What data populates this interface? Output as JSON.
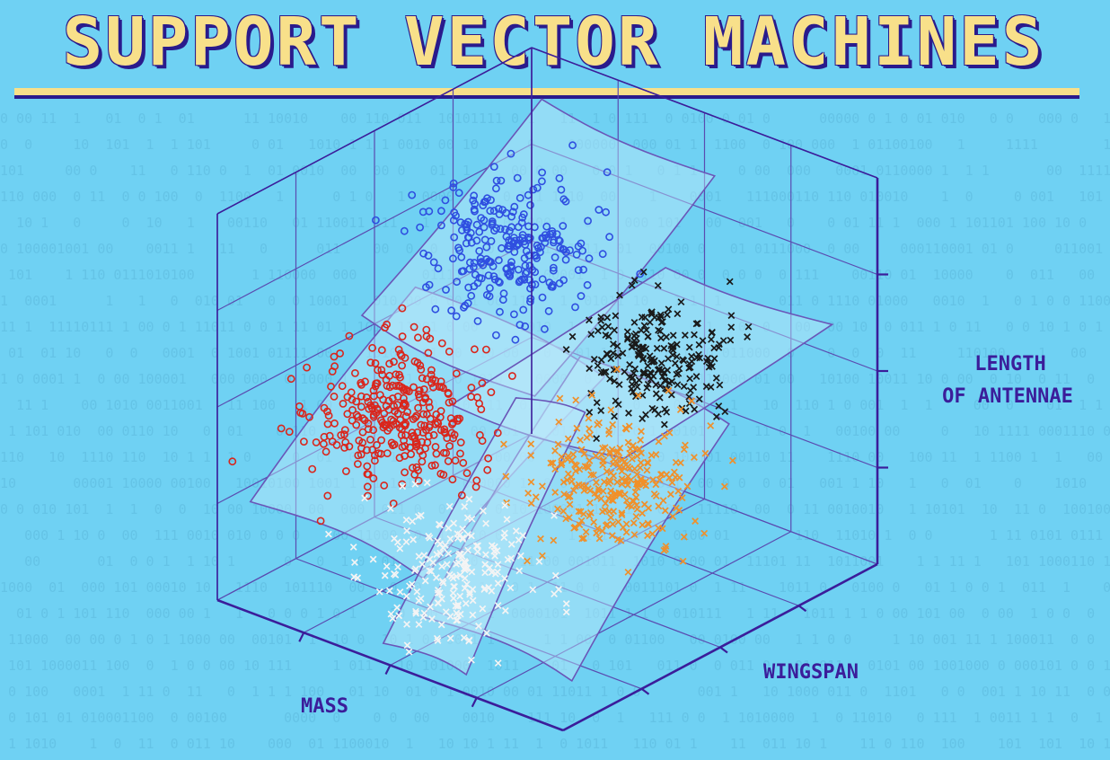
{
  "title": "SUPPORT VECTOR MACHINES",
  "chart_data": {
    "type": "scatter",
    "subtype": "3d-scatter-with-decision-surfaces",
    "axes": {
      "x": {
        "label": "MASS"
      },
      "y": {
        "label": "WINGSPAN"
      },
      "z": {
        "label": "LENGTH OF ANTENNAE"
      }
    },
    "grid": true,
    "series": [
      {
        "marker": "o",
        "color": "#2f4fe0",
        "n": 260,
        "center": [
          0.35,
          0.55,
          0.78
        ],
        "spread": [
          0.1,
          0.09,
          0.07
        ]
      },
      {
        "marker": "x",
        "color": "#1a1a1a",
        "n": 230,
        "center": [
          0.85,
          0.45,
          0.72
        ],
        "spread": [
          0.08,
          0.08,
          0.07
        ]
      },
      {
        "marker": "o",
        "color": "#d9261c",
        "n": 320,
        "center": [
          0.25,
          0.3,
          0.42
        ],
        "spread": [
          0.1,
          0.09,
          0.08
        ]
      },
      {
        "marker": "x",
        "color": "#f0902a",
        "n": 280,
        "center": [
          0.78,
          0.4,
          0.4
        ],
        "spread": [
          0.09,
          0.09,
          0.08
        ]
      },
      {
        "marker": "x",
        "color": "#f4f4f4",
        "n": 200,
        "center": [
          0.55,
          0.15,
          0.2
        ],
        "spread": [
          0.09,
          0.08,
          0.08
        ]
      }
    ],
    "colors": {
      "background": "#6fd1f3",
      "axes": "#3b1d9a",
      "grid": "#5a4bb0",
      "title": "#f8e08a",
      "surface": "#bfe9fb"
    }
  }
}
